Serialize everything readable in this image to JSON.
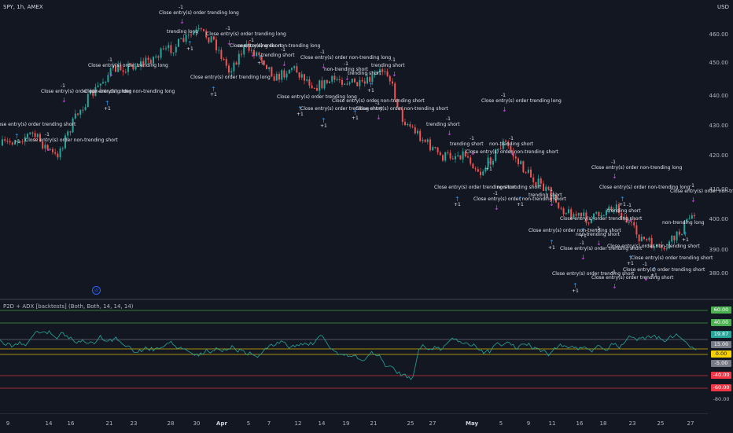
{
  "header": {
    "symbol": "SPY, 1h, AMEX",
    "currency": "USD"
  },
  "indicator": {
    "title": "P2D + ADX [backtests] (Both, Both, 14, 14, 14)"
  },
  "price_axis": [
    "460.00",
    "450.00",
    "440.00",
    "430.00",
    "420.00",
    "410.00",
    "400.00",
    "390.00",
    "380.00"
  ],
  "indicator_axis": [
    {
      "label": "60.00",
      "color": "#4caf50"
    },
    {
      "label": "40.00",
      "color": "#4caf50"
    },
    {
      "label": "19.87",
      "color": "#26a69a"
    },
    {
      "label": "15.00",
      "color": "#787b86"
    },
    {
      "label": "0.00",
      "color": "#f7d200"
    },
    {
      "label": "-5.00",
      "color": "#787b86"
    },
    {
      "label": "-40.00",
      "color": "#f23645"
    },
    {
      "label": "-60.00",
      "color": "#f23645"
    },
    {
      "label": "-80.00",
      "color": "transparent"
    }
  ],
  "time_axis": [
    "9",
    "14",
    "16",
    "21",
    "23",
    "28",
    "30",
    "Apr",
    "5",
    "7",
    "12",
    "14",
    "19",
    "21",
    "25",
    "27",
    "May",
    "5",
    "9",
    "11",
    "16",
    "18",
    "23",
    "25",
    "27"
  ],
  "annotations": [
    "Close entry(s) order trending long",
    "Close entry(s) order non-trending long",
    "Close entry(s) order trending short",
    "Close entry(s) order non-trending short",
    "trending long",
    "non-trending long",
    "trending short",
    "non-trending short",
    "-1",
    "+1"
  ],
  "colors": {
    "bull": "#26a69a",
    "bear": "#ef5350",
    "long_arrow": "#2196f3",
    "short_arrow": "#e040fb",
    "adx_line": "#26a69a",
    "level_green": "#4caf50",
    "level_red": "#f23645",
    "level_yellow": "#f7d200"
  },
  "scroll_marker_icon": "timezone-icon"
}
